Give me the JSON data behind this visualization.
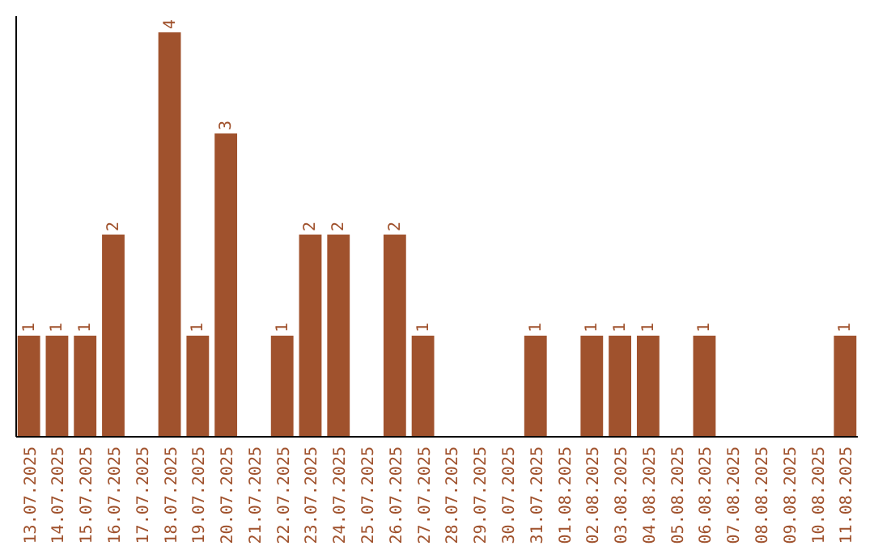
{
  "chart_data": {
    "type": "bar",
    "categories": [
      "13.07.2025",
      "14.07.2025",
      "15.07.2025",
      "16.07.2025",
      "17.07.2025",
      "18.07.2025",
      "19.07.2025",
      "20.07.2025",
      "21.07.2025",
      "22.07.2025",
      "23.07.2025",
      "24.07.2025",
      "25.07.2025",
      "26.07.2025",
      "27.07.2025",
      "28.07.2025",
      "29.07.2025",
      "30.07.2025",
      "31.07.2025",
      "01.08.2025",
      "02.08.2025",
      "03.08.2025",
      "04.08.2025",
      "05.08.2025",
      "06.08.2025",
      "07.08.2025",
      "08.08.2025",
      "09.08.2025",
      "10.08.2025",
      "11.08.2025"
    ],
    "values": [
      1,
      1,
      1,
      2,
      0,
      4,
      1,
      3,
      0,
      1,
      2,
      2,
      0,
      2,
      1,
      0,
      0,
      0,
      1,
      0,
      1,
      1,
      1,
      0,
      1,
      0,
      0,
      0,
      0,
      1
    ],
    "value_labels": [
      "1",
      "1",
      "1",
      "2",
      null,
      "4",
      "1",
      "3",
      null,
      "1",
      "2",
      "2",
      null,
      "2",
      "1",
      null,
      null,
      null,
      "1",
      null,
      "1",
      "1",
      "1",
      null,
      "1",
      null,
      null,
      null,
      null,
      "1"
    ],
    "color": "#a0522d",
    "ylim": [
      0,
      4.16
    ],
    "tick_labels": "x"
  }
}
